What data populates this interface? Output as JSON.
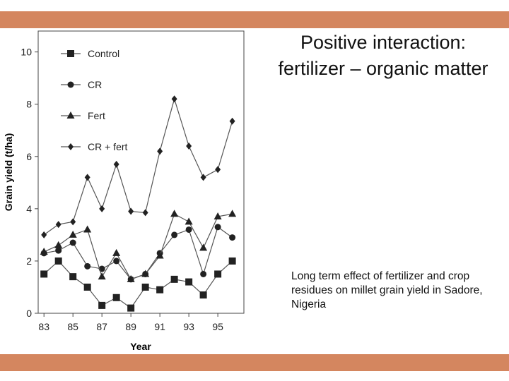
{
  "colors": {
    "accent_bar": "#d4865f",
    "ink": "#222222"
  },
  "slide": {
    "title": "Positive interaction: fertilizer – organic matter",
    "caption": "Long term effect of fertilizer and crop residues on millet grain yield in Sadore, Nigeria"
  },
  "chart_data": {
    "type": "line",
    "title": "",
    "xlabel": "Year",
    "ylabel": "Grain yield (t/ha)",
    "x": [
      83,
      84,
      85,
      86,
      87,
      88,
      89,
      90,
      91,
      92,
      93,
      94,
      95,
      96
    ],
    "x_ticks": [
      "83",
      "85",
      "87",
      "89",
      "91",
      "93",
      "95"
    ],
    "y_ticks": [
      "0",
      "2",
      "4",
      "6",
      "8",
      "10"
    ],
    "xlim": [
      82.6,
      96.8
    ],
    "ylim": [
      0,
      10.8
    ],
    "grid": false,
    "legend_position": "top-left",
    "series": [
      {
        "name": "Control",
        "marker": "square",
        "values": [
          1.5,
          2.0,
          1.4,
          1.0,
          0.3,
          0.6,
          0.2,
          1.0,
          0.9,
          1.3,
          1.2,
          0.7,
          1.5,
          2.0
        ]
      },
      {
        "name": "CR",
        "marker": "circle",
        "values": [
          2.3,
          2.4,
          2.7,
          1.8,
          1.7,
          2.0,
          1.3,
          1.5,
          2.3,
          3.0,
          3.2,
          1.5,
          3.3,
          2.9
        ]
      },
      {
        "name": "Fert",
        "marker": "triangle",
        "values": [
          2.35,
          2.6,
          3.0,
          3.2,
          1.4,
          2.3,
          1.3,
          1.5,
          2.2,
          3.8,
          3.5,
          2.5,
          3.7,
          3.8
        ]
      },
      {
        "name": "CR + fert",
        "marker": "diamond",
        "values": [
          3.0,
          3.4,
          3.5,
          5.2,
          4.0,
          5.7,
          3.9,
          3.85,
          6.2,
          8.2,
          6.4,
          5.2,
          5.5,
          7.35
        ]
      }
    ]
  }
}
